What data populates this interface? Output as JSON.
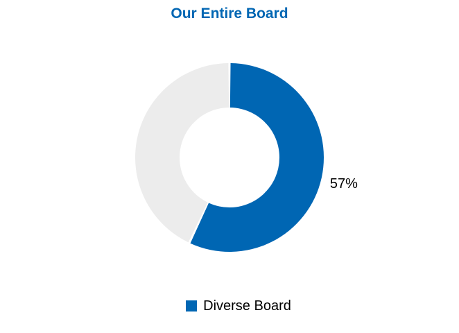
{
  "chart_data": {
    "type": "pie",
    "title": "Our Entire Board",
    "donut": true,
    "series": [
      {
        "name": "Diverse Board",
        "values": [
          57,
          43
        ],
        "slice_labels": [
          "57%",
          ""
        ],
        "colors": [
          "#0066b3",
          "#ececec"
        ]
      }
    ],
    "legend": {
      "placement": "bottom",
      "entries": [
        "Diverse Board"
      ]
    }
  },
  "colors": {
    "title": "#0066b3",
    "accent": "#0066b3",
    "remainder": "#ececec"
  }
}
